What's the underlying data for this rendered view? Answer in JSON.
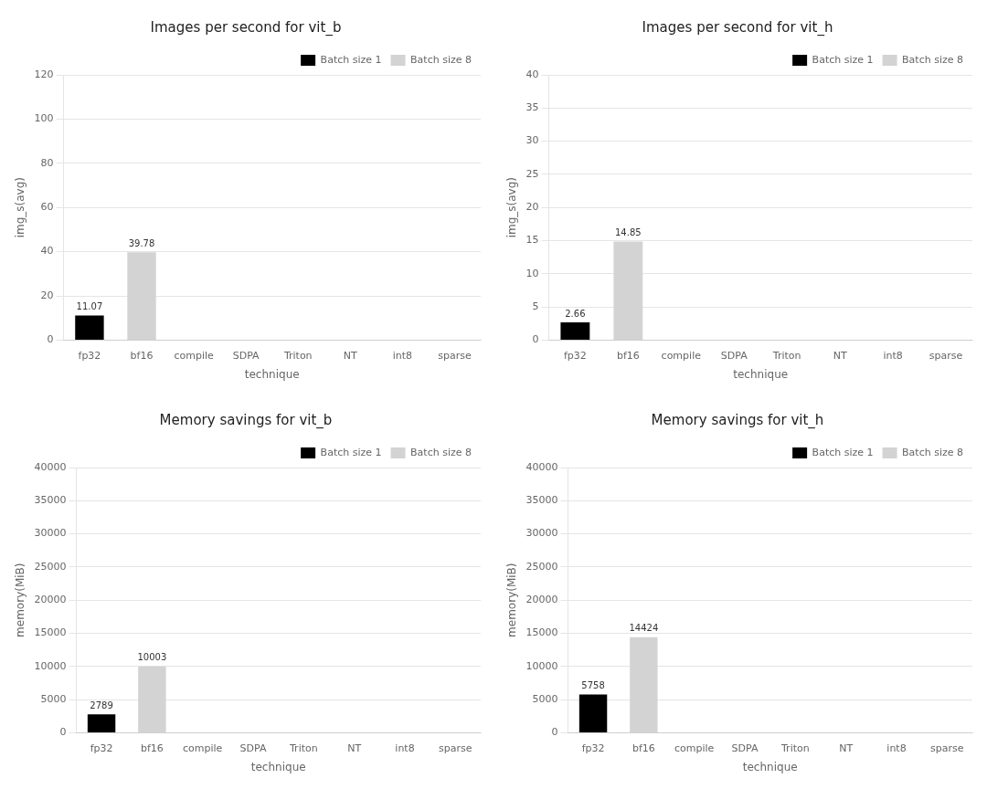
{
  "chart_data": [
    {
      "type": "bar",
      "title": "Images per second for vit_b",
      "xlabel": "technique",
      "ylabel": "img_s(avg)",
      "categories": [
        "fp32",
        "bf16",
        "compile",
        "SDPA",
        "Triton",
        "NT",
        "int8",
        "sparse"
      ],
      "series": [
        {
          "name": "Batch size 1",
          "color": "#000000",
          "values": [
            11.07,
            0,
            0,
            0,
            0,
            0,
            0,
            0
          ],
          "value_labels": [
            "11.07",
            null,
            null,
            null,
            null,
            null,
            null,
            null
          ]
        },
        {
          "name": "Batch size 8",
          "color": "#d3d3d3",
          "values": [
            0,
            39.78,
            0,
            0,
            0,
            0,
            0,
            0
          ],
          "value_labels": [
            null,
            "39.78",
            null,
            null,
            null,
            null,
            null,
            null
          ]
        }
      ],
      "ylim": [
        0,
        120
      ],
      "yticks": [
        0,
        20,
        40,
        60,
        80,
        100,
        120
      ],
      "grid": true,
      "legend": "upper right",
      "data_labels": true
    },
    {
      "type": "bar",
      "title": "Images per second for vit_h",
      "xlabel": "technique",
      "ylabel": "img_s(avg)",
      "categories": [
        "fp32",
        "bf16",
        "compile",
        "SDPA",
        "Triton",
        "NT",
        "int8",
        "sparse"
      ],
      "series": [
        {
          "name": "Batch size 1",
          "color": "#000000",
          "values": [
            2.66,
            0,
            0,
            0,
            0,
            0,
            0,
            0
          ],
          "value_labels": [
            "2.66",
            null,
            null,
            null,
            null,
            null,
            null,
            null
          ]
        },
        {
          "name": "Batch size 8",
          "color": "#d3d3d3",
          "values": [
            0,
            14.85,
            0,
            0,
            0,
            0,
            0,
            0
          ],
          "value_labels": [
            null,
            "14.85",
            null,
            null,
            null,
            null,
            null,
            null
          ]
        }
      ],
      "ylim": [
        0,
        40
      ],
      "yticks": [
        0,
        5,
        10,
        15,
        20,
        25,
        30,
        35,
        40
      ],
      "grid": true,
      "legend": "upper right",
      "data_labels": true
    },
    {
      "type": "bar",
      "title": "Memory savings for vit_b",
      "xlabel": "technique",
      "ylabel": "memory(MiB)",
      "categories": [
        "fp32",
        "bf16",
        "compile",
        "SDPA",
        "Triton",
        "NT",
        "int8",
        "sparse"
      ],
      "series": [
        {
          "name": "Batch size 1",
          "color": "#000000",
          "values": [
            2789,
            0,
            0,
            0,
            0,
            0,
            0,
            0
          ],
          "value_labels": [
            "2789",
            null,
            null,
            null,
            null,
            null,
            null,
            null
          ]
        },
        {
          "name": "Batch size 8",
          "color": "#d3d3d3",
          "values": [
            0,
            10003,
            0,
            0,
            0,
            0,
            0,
            0
          ],
          "value_labels": [
            null,
            "10003",
            null,
            null,
            null,
            null,
            null,
            null
          ]
        }
      ],
      "ylim": [
        0,
        40000
      ],
      "yticks": [
        0,
        5000,
        10000,
        15000,
        20000,
        25000,
        30000,
        35000,
        40000
      ],
      "grid": true,
      "legend": "upper right",
      "data_labels": true
    },
    {
      "type": "bar",
      "title": "Memory savings for vit_h",
      "xlabel": "technique",
      "ylabel": "memory(MiB)",
      "categories": [
        "fp32",
        "bf16",
        "compile",
        "SDPA",
        "Triton",
        "NT",
        "int8",
        "sparse"
      ],
      "series": [
        {
          "name": "Batch size 1",
          "color": "#000000",
          "values": [
            5758,
            0,
            0,
            0,
            0,
            0,
            0,
            0
          ],
          "value_labels": [
            "5758",
            null,
            null,
            null,
            null,
            null,
            null,
            null
          ]
        },
        {
          "name": "Batch size 8",
          "color": "#d3d3d3",
          "values": [
            0,
            14424,
            0,
            0,
            0,
            0,
            0,
            0
          ],
          "value_labels": [
            null,
            "14424",
            null,
            null,
            null,
            null,
            null,
            null
          ]
        }
      ],
      "ylim": [
        0,
        40000
      ],
      "yticks": [
        0,
        5000,
        10000,
        15000,
        20000,
        25000,
        30000,
        35000,
        40000
      ],
      "grid": true,
      "legend": "upper right",
      "data_labels": true
    }
  ]
}
